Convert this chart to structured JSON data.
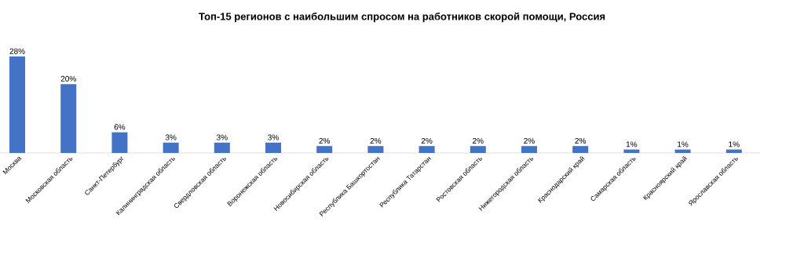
{
  "chart_data": {
    "type": "bar",
    "title": "Топ-15 регионов с наибольшим спросом на работников скорой помощи, Россия",
    "categories": [
      "Москва",
      "Московская область",
      "Санкт-Петербург",
      "Калининградская область",
      "Свердловская область",
      "Воронежская область",
      "Новосибирская область",
      "Республика Башкортостан",
      "Республика Татарстан",
      "Ростовская область",
      "Нижегородская область",
      "Краснодарский край",
      "Самарская область",
      "Красноярский край",
      "Ярославская область"
    ],
    "values": [
      28,
      20,
      6,
      3,
      3,
      3,
      2,
      2,
      2,
      2,
      2,
      2,
      1,
      1,
      1
    ],
    "value_labels": [
      "28%",
      "20%",
      "6%",
      "3%",
      "3%",
      "3%",
      "2%",
      "2%",
      "2%",
      "2%",
      "2%",
      "2%",
      "1%",
      "1%",
      "1%"
    ],
    "color": "#4472c4"
  }
}
